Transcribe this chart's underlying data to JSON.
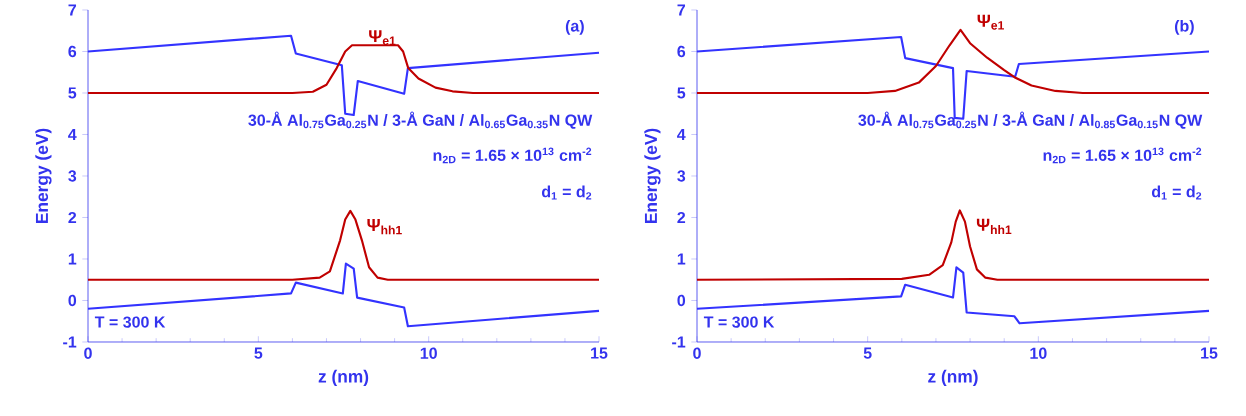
{
  "chart_data": [
    {
      "type": "line",
      "xlabel": "z (nm)",
      "ylabel": "Energy (eV)",
      "xlim": [
        0,
        15
      ],
      "ylim": [
        -1,
        7
      ],
      "xticks": [
        0,
        5,
        10,
        15
      ],
      "yticks": [
        -1,
        0,
        1,
        2,
        3,
        4,
        5,
        6,
        7
      ],
      "legend": false,
      "grid": false,
      "annotations": [
        "(a)",
        "30-Å Al$_{0.75}$Ga$_{0.25}$N / 3-Å GaN / Al$_{0.65}$Ga$_{0.35}$N  QW",
        "n$_{2D}$ = 1.65 × 10$^{13}$ cm$^{-2}$",
        "d$_{1}$ = d$_{2}$",
        "T = 300 K"
      ],
      "series": [
        {
          "color": "#3333ff",
          "x": [
            0,
            5.96,
            6.1,
            7.45,
            7.55,
            7.8,
            7.92,
            9.28,
            9.39,
            15
          ],
          "values": [
            6.0,
            6.38,
            5.95,
            5.67,
            4.5,
            4.47,
            5.29,
            4.98,
            5.6,
            5.97
          ]
        },
        {
          "color": "#3333ff",
          "x": [
            0,
            5.96,
            6.1,
            7.48,
            7.57,
            7.8,
            7.9,
            9.28,
            9.39,
            15
          ],
          "values": [
            -0.2,
            0.17,
            0.43,
            0.17,
            0.89,
            0.77,
            0.07,
            -0.17,
            -0.62,
            -0.25
          ]
        },
        {
          "name": "Ψ$_{e1}$",
          "color": "#c00000",
          "x": [
            0,
            6.0,
            6.6,
            7.0,
            7.3,
            7.55,
            7.75,
            9.1,
            9.25,
            9.4,
            9.7,
            10.2,
            10.7,
            11.3,
            15
          ],
          "values": [
            5.0,
            5.0,
            5.03,
            5.2,
            5.6,
            6.0,
            6.15,
            6.15,
            6.0,
            5.6,
            5.35,
            5.13,
            5.04,
            5.0,
            5.0
          ]
        },
        {
          "name": "Ψ$_{hh1}$",
          "color": "#c00000",
          "x": [
            0,
            6.0,
            6.8,
            7.1,
            7.4,
            7.55,
            7.7,
            7.85,
            8.04,
            8.25,
            8.5,
            8.8,
            15
          ],
          "values": [
            0.5,
            0.5,
            0.55,
            0.7,
            1.45,
            1.95,
            2.16,
            1.95,
            1.45,
            0.8,
            0.55,
            0.5,
            0.5
          ]
        }
      ]
    },
    {
      "type": "line",
      "xlabel": "z (nm)",
      "ylabel": "Energy (eV)",
      "xlim": [
        0,
        15
      ],
      "ylim": [
        -1,
        7
      ],
      "xticks": [
        0,
        5,
        10,
        15
      ],
      "yticks": [
        -1,
        0,
        1,
        2,
        3,
        4,
        5,
        6,
        7
      ],
      "legend": false,
      "grid": false,
      "annotations": [
        "(b)",
        "30-Å Al$_{0.75}$Ga$_{0.25}$N / 3-Å GaN / Al$_{0.85}$Ga$_{0.15}$N  QW",
        "n$_{2D}$ = 1.65 × 10$^{13}$ cm$^{-2}$",
        "d$_{1}$ = d$_{2}$",
        "T = 300 K"
      ],
      "series": [
        {
          "color": "#3333ff",
          "x": [
            0,
            5.98,
            6.1,
            7.5,
            7.55,
            7.8,
            7.9,
            9.32,
            9.43,
            15
          ],
          "values": [
            6.0,
            6.35,
            5.84,
            5.6,
            4.4,
            4.38,
            5.53,
            5.39,
            5.7,
            6.0
          ]
        },
        {
          "color": "#3333ff",
          "x": [
            0,
            5.98,
            6.1,
            7.5,
            7.6,
            7.8,
            7.9,
            9.3,
            9.45,
            15
          ],
          "values": [
            -0.2,
            0.1,
            0.38,
            0.07,
            0.8,
            0.67,
            -0.29,
            -0.38,
            -0.55,
            -0.25
          ]
        },
        {
          "name": "Ψ$_{e1}$",
          "color": "#c00000",
          "x": [
            0,
            5.0,
            5.8,
            6.5,
            7.0,
            7.4,
            7.72,
            8.0,
            8.5,
            9.0,
            9.3,
            9.8,
            10.5,
            11.3,
            15
          ],
          "values": [
            5.0,
            5.0,
            5.05,
            5.25,
            5.65,
            6.15,
            6.52,
            6.2,
            5.85,
            5.55,
            5.38,
            5.18,
            5.05,
            5.0,
            5.0
          ]
        },
        {
          "name": "Ψ$_{hh1}$",
          "color": "#c00000",
          "x": [
            0,
            6.0,
            6.8,
            7.2,
            7.45,
            7.58,
            7.7,
            7.85,
            8.0,
            8.2,
            8.45,
            8.8,
            15
          ],
          "values": [
            0.5,
            0.52,
            0.62,
            0.85,
            1.4,
            1.9,
            2.17,
            1.9,
            1.3,
            0.75,
            0.55,
            0.5,
            0.5
          ]
        }
      ]
    }
  ]
}
